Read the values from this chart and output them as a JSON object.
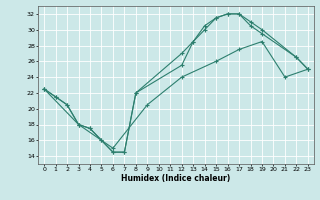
{
  "xlabel": "Humidex (Indice chaleur)",
  "bg_color": "#cce8e8",
  "grid_color": "#ffffff",
  "line_color": "#2d7f6e",
  "xlim": [
    -0.5,
    23.5
  ],
  "ylim": [
    13.0,
    33.0
  ],
  "xticks": [
    0,
    1,
    2,
    3,
    4,
    5,
    6,
    7,
    8,
    9,
    10,
    11,
    12,
    13,
    14,
    15,
    16,
    17,
    18,
    19,
    20,
    21,
    22,
    23
  ],
  "yticks": [
    14,
    16,
    18,
    20,
    22,
    24,
    26,
    28,
    30,
    32
  ],
  "line1_x": [
    0,
    1,
    2,
    3,
    4,
    5,
    6,
    7,
    8,
    12,
    13,
    14,
    15,
    16,
    17,
    18,
    19,
    22,
    23
  ],
  "line1_y": [
    22.5,
    21.5,
    20.5,
    18.0,
    17.5,
    16.0,
    14.5,
    14.5,
    22.0,
    25.5,
    28.5,
    30.5,
    31.5,
    32.0,
    32.0,
    31.0,
    30.0,
    26.5,
    25.0
  ],
  "line2_x": [
    0,
    1,
    2,
    3,
    4,
    5,
    6,
    7,
    8,
    12,
    13,
    14,
    15,
    16,
    17,
    18,
    19,
    22,
    23
  ],
  "line2_y": [
    22.5,
    21.5,
    20.5,
    18.0,
    17.5,
    16.0,
    14.5,
    14.5,
    22.0,
    27.0,
    28.5,
    30.0,
    31.5,
    32.0,
    32.0,
    30.5,
    29.5,
    26.5,
    25.0
  ],
  "line3_x": [
    0,
    3,
    6,
    9,
    12,
    15,
    17,
    19,
    21,
    23
  ],
  "line3_y": [
    22.5,
    18.0,
    15.0,
    20.5,
    24.0,
    26.0,
    27.5,
    28.5,
    24.0,
    25.0
  ]
}
